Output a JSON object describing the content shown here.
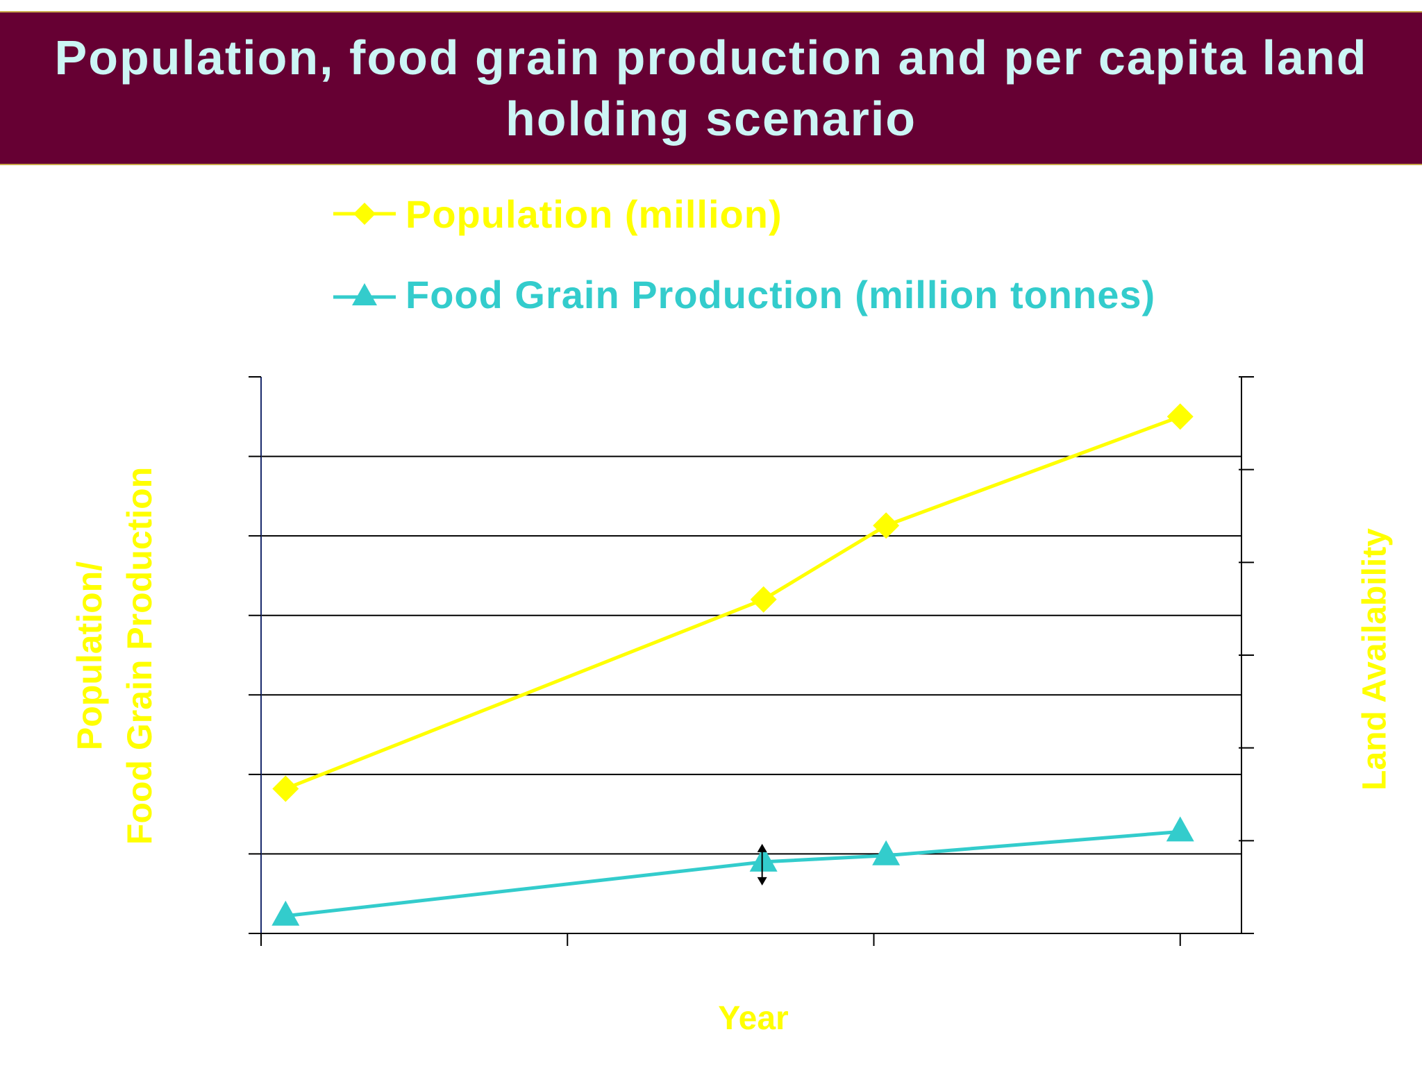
{
  "title": "Population, food grain production and per capita land holding scenario",
  "colors": {
    "title_bg": "#660033",
    "title_text": "#ccf5f5",
    "population": "#ffff00",
    "food_grain": "#33cccc",
    "axis_labels": "#ffff00"
  },
  "chart_data": {
    "type": "line",
    "title": "",
    "xlabel": "Year",
    "ylabel": "Population/\nFood Grain Production",
    "y2label": "Land Availability",
    "legend_position": "top",
    "grid": true,
    "x": [
      0.08,
      1.64,
      2.04,
      3.0
    ],
    "xlim": [
      0,
      3.2
    ],
    "ylim": [
      0,
      7
    ],
    "series": [
      {
        "name": "Population (million)",
        "marker": "diamond",
        "color": "#ffff00",
        "values": [
          1.82,
          4.2,
          5.13,
          6.5
        ]
      },
      {
        "name": "Food Grain Production (million tonnes)",
        "marker": "triangle",
        "color": "#33cccc",
        "values": [
          0.22,
          0.9,
          0.98,
          1.28
        ]
      }
    ]
  }
}
